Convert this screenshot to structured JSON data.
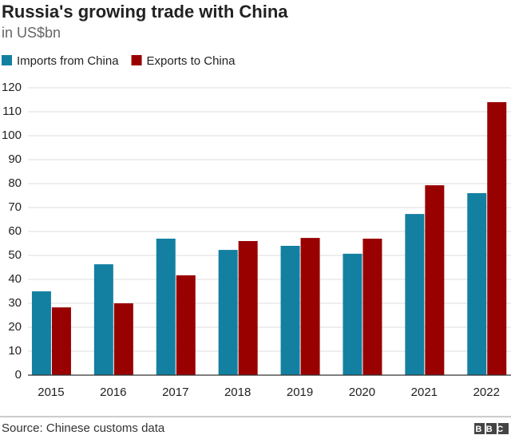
{
  "chart_data": {
    "type": "bar",
    "title": "Russia's growing trade with China",
    "subtitle": "in US$bn",
    "categories": [
      "2015",
      "2016",
      "2017",
      "2018",
      "2019",
      "2020",
      "2021",
      "2022"
    ],
    "series": [
      {
        "name": "Imports from China",
        "color": "#1380a1",
        "values": [
          35,
          46.3,
          57,
          52.3,
          54,
          50.7,
          67.3,
          76
        ]
      },
      {
        "name": "Exports to China",
        "color": "#990000",
        "values": [
          28.3,
          30,
          41.7,
          56,
          57.3,
          57,
          79.3,
          114
        ]
      }
    ],
    "ylim": [
      0,
      120
    ],
    "yticks": [
      0,
      10,
      20,
      30,
      40,
      50,
      60,
      70,
      80,
      90,
      100,
      110,
      120
    ],
    "grid": true,
    "source": "Source: Chinese customs data",
    "logo": "BBC"
  }
}
